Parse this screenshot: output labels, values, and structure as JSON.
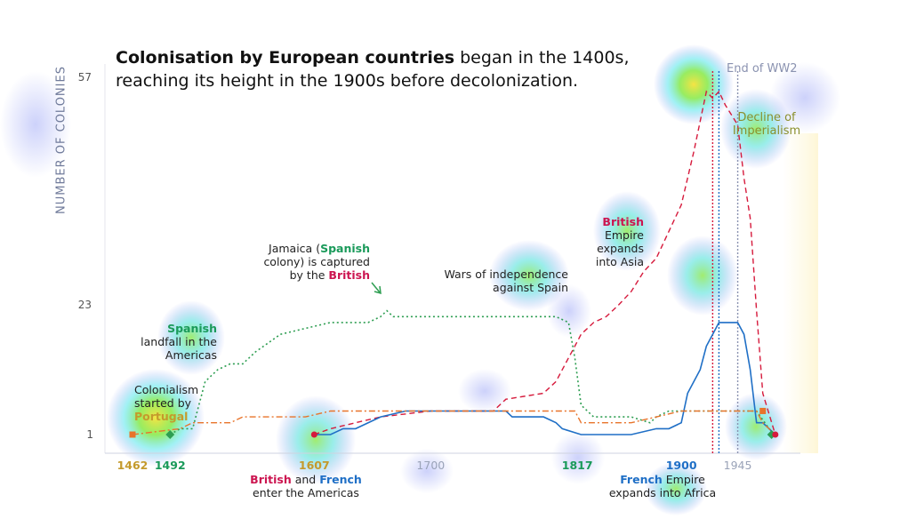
{
  "title": {
    "bold": "Colonisation by European countries",
    "rest_line1": " began in the 1400s,",
    "line2": "reaching its height in the 1900s before decolonization."
  },
  "colors": {
    "spain": "#2e9e52",
    "britain": "#d61a3c",
    "france": "#1f6fc6",
    "portugal": "#e8732a",
    "ww2": "#8a92b0"
  },
  "chart_data": {
    "type": "line",
    "ylabel": "NUMBER OF COLONIES",
    "y_ticks": [
      "57",
      "23",
      "1"
    ],
    "y_tick_values": [
      57,
      23,
      1
    ],
    "ylim": [
      0,
      60
    ],
    "xlim": [
      1440,
      1995
    ],
    "x_ticks": [
      {
        "label": "1462",
        "value": 1462,
        "color": "#c49a2c"
      },
      {
        "label": "1492",
        "value": 1492,
        "color": "#1a9a5a"
      },
      {
        "label": "1607",
        "value": 1607,
        "color": "#c49a2c"
      },
      {
        "label": "1700",
        "value": 1700,
        "color": "#9aa3b8"
      },
      {
        "label": "1817",
        "value": 1817,
        "color": "#1a9a5a"
      },
      {
        "label": "1900",
        "value": 1900,
        "color": "#1f6fc6"
      },
      {
        "label": "1945",
        "value": 1945,
        "color": "#9aa3b8"
      }
    ],
    "series": [
      {
        "color": "#2e9e52",
        "x": [
          1492,
          1500,
          1510,
          1520,
          1530,
          1540,
          1550,
          1560,
          1580,
          1600,
          1620,
          1640,
          1650,
          1660,
          1665,
          1670,
          1700,
          1750,
          1790,
          1800,
          1810,
          1815,
          1820,
          1830,
          1860,
          1875,
          1880,
          1890,
          1900,
          1910,
          1935,
          1960,
          1970,
          1975
        ],
        "y": [
          1,
          2,
          2,
          10,
          12,
          13,
          13,
          15,
          18,
          19,
          20,
          20,
          20,
          21,
          22,
          21,
          21,
          21,
          21,
          21,
          20,
          14,
          6,
          4,
          4,
          3,
          4,
          5,
          5,
          5,
          5,
          5,
          2,
          1
        ]
      },
      {
        "color": "#d61a3c",
        "x": [
          1607,
          1620,
          1640,
          1660,
          1700,
          1750,
          1760,
          1790,
          1800,
          1810,
          1815,
          1820,
          1830,
          1840,
          1850,
          1860,
          1870,
          1880,
          1900,
          1910,
          1920,
          1925,
          1930,
          1935,
          1945,
          1950,
          1955,
          1960,
          1965,
          1975
        ],
        "y": [
          1,
          2,
          3,
          4,
          5,
          5,
          7,
          8,
          10,
          14,
          16,
          18,
          20,
          21,
          23,
          25,
          28,
          30,
          38,
          46,
          55,
          54,
          55,
          53,
          50,
          42,
          36,
          22,
          8,
          1
        ]
      },
      {
        "color": "#1f6fc6",
        "x": [
          1607,
          1620,
          1630,
          1640,
          1660,
          1680,
          1700,
          1760,
          1765,
          1770,
          1790,
          1800,
          1805,
          1820,
          1860,
          1880,
          1890,
          1900,
          1905,
          1915,
          1920,
          1925,
          1930,
          1945,
          1950,
          1955,
          1960,
          1965,
          1975
        ],
        "y": [
          1,
          1,
          2,
          2,
          4,
          5,
          5,
          5,
          4,
          4,
          4,
          3,
          2,
          1,
          1,
          2,
          2,
          3,
          8,
          12,
          16,
          18,
          20,
          20,
          18,
          12,
          3,
          3,
          1
        ]
      },
      {
        "color": "#e8732a",
        "x": [
          1462,
          1500,
          1510,
          1540,
          1550,
          1600,
          1620,
          1640,
          1650,
          1700,
          1760,
          1800,
          1815,
          1820,
          1860,
          1900,
          1960,
          1965,
          1975
        ],
        "y": [
          1,
          2,
          3,
          3,
          4,
          4,
          5,
          5,
          5,
          5,
          5,
          5,
          5,
          3,
          3,
          5,
          5,
          3,
          1
        ]
      }
    ],
    "vlines": [
      {
        "x": 1925,
        "color": "#d61a3c"
      },
      {
        "x": 1930,
        "color": "#1f6fc6"
      },
      {
        "x": 1945,
        "color": "#8a92b0"
      }
    ]
  },
  "annotations": {
    "portugal": {
      "l1": "Colonialism",
      "l2": "started by",
      "l3": "Portugal"
    },
    "spanish_landfall": {
      "l1": "Spanish",
      "l2": "landfall in the",
      "l3": "Americas"
    },
    "jamaica": {
      "p1": "Jamaica (",
      "spanish": "Spanish",
      "p2": "",
      "l2a": "colony) is captured",
      "l3a": "by the ",
      "british": "British"
    },
    "independence": {
      "l1": "Wars of independence",
      "l2": "against Spain"
    },
    "british_asia": {
      "l1": "British",
      "l2": "Empire",
      "l3": "expands",
      "l4": "into Asia"
    },
    "ww2": {
      "text": "End of WW2"
    },
    "decline": {
      "l1": "Decline of",
      "l2": "Imperialism"
    },
    "americas": {
      "british": "British",
      "and": " and ",
      "french": "French",
      "l2": "enter the Americas"
    },
    "africa": {
      "french": "French",
      "rest": " Empire",
      "l2": "expands into Africa"
    }
  }
}
